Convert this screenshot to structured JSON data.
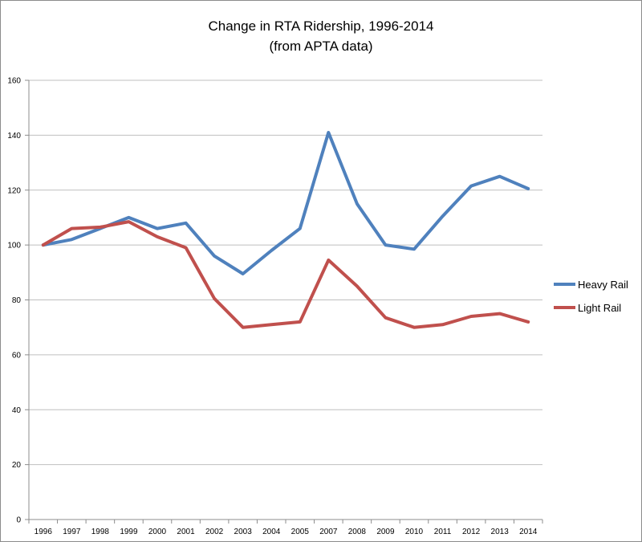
{
  "chart_data": {
    "type": "line",
    "title": [
      "Change in RTA Ridership, 1996-2014",
      "(from APTA data)"
    ],
    "xlabel": "",
    "ylabel": "",
    "x": [
      "1996",
      "1997",
      "1998",
      "1999",
      "2000",
      "2001",
      "2002",
      "2003",
      "2004",
      "2005",
      "2007",
      "2008",
      "2009",
      "2010",
      "2011",
      "2012",
      "2013",
      "2014"
    ],
    "ylim": [
      0,
      160
    ],
    "yticks": [
      0,
      20,
      40,
      60,
      80,
      100,
      120,
      140,
      160
    ],
    "grid": true,
    "legend": "right",
    "series": [
      {
        "name": "Heavy Rail",
        "color": "#4f81bd",
        "values": [
          100,
          102,
          106,
          110,
          106,
          108,
          96,
          89.5,
          98,
          106,
          141,
          115,
          100,
          98.5,
          110.5,
          121.5,
          125,
          120.5
        ]
      },
      {
        "name": "Light Rail",
        "color": "#c0504d",
        "values": [
          100,
          106,
          106.5,
          108.5,
          103,
          99,
          80.5,
          70,
          71,
          72,
          94.5,
          85,
          73.5,
          70,
          71,
          74,
          75,
          72
        ]
      }
    ]
  }
}
